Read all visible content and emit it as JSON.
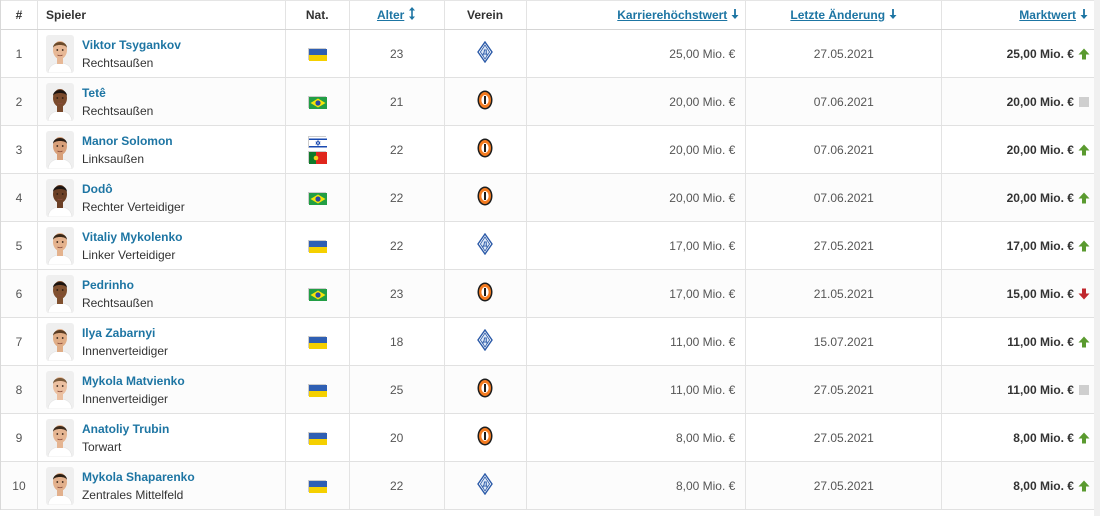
{
  "header": {
    "num": "#",
    "player": "Spieler",
    "nat": "Nat.",
    "age": "Alter",
    "club": "Verein",
    "peak": "Karrierehöchstwert",
    "date": "Letzte Änderung",
    "mv": "Marktwert"
  },
  "colors": {
    "link": "#1d75a3",
    "trend_up": "#5a9a2f",
    "trend_down": "#c0272d",
    "trend_same": "#cfcfcf"
  },
  "rows": [
    {
      "num": "1",
      "name": "Viktor Tsygankov",
      "position": "Rechtsaußen",
      "flags": [
        "ukraine"
      ],
      "age": "23",
      "club": "dynamo-kyiv",
      "peak": "25,00 Mio. €",
      "date": "27.05.2021",
      "mv": "25,00 Mio. €",
      "trend": "up"
    },
    {
      "num": "2",
      "name": "Tetê",
      "position": "Rechtsaußen",
      "flags": [
        "brazil"
      ],
      "age": "21",
      "club": "shakhtar-donetsk",
      "peak": "20,00 Mio. €",
      "date": "07.06.2021",
      "mv": "20,00 Mio. €",
      "trend": "same"
    },
    {
      "num": "3",
      "name": "Manor Solomon",
      "position": "Linksaußen",
      "flags": [
        "israel",
        "portugal"
      ],
      "age": "22",
      "club": "shakhtar-donetsk",
      "peak": "20,00 Mio. €",
      "date": "07.06.2021",
      "mv": "20,00 Mio. €",
      "trend": "up"
    },
    {
      "num": "4",
      "name": "Dodô",
      "position": "Rechter Verteidiger",
      "flags": [
        "brazil"
      ],
      "age": "22",
      "club": "shakhtar-donetsk",
      "peak": "20,00 Mio. €",
      "date": "07.06.2021",
      "mv": "20,00 Mio. €",
      "trend": "up"
    },
    {
      "num": "5",
      "name": "Vitaliy Mykolenko",
      "position": "Linker Verteidiger",
      "flags": [
        "ukraine"
      ],
      "age": "22",
      "club": "dynamo-kyiv",
      "peak": "17,00 Mio. €",
      "date": "27.05.2021",
      "mv": "17,00 Mio. €",
      "trend": "up"
    },
    {
      "num": "6",
      "name": "Pedrinho",
      "position": "Rechtsaußen",
      "flags": [
        "brazil"
      ],
      "age": "23",
      "club": "shakhtar-donetsk",
      "peak": "17,00 Mio. €",
      "date": "21.05.2021",
      "mv": "15,00 Mio. €",
      "trend": "down"
    },
    {
      "num": "7",
      "name": "Ilya Zabarnyi",
      "position": "Innenverteidiger",
      "flags": [
        "ukraine"
      ],
      "age": "18",
      "club": "dynamo-kyiv",
      "peak": "11,00 Mio. €",
      "date": "15.07.2021",
      "mv": "11,00 Mio. €",
      "trend": "up"
    },
    {
      "num": "8",
      "name": "Mykola Matvienko",
      "position": "Innenverteidiger",
      "flags": [
        "ukraine"
      ],
      "age": "25",
      "club": "shakhtar-donetsk",
      "peak": "11,00 Mio. €",
      "date": "27.05.2021",
      "mv": "11,00 Mio. €",
      "trend": "same"
    },
    {
      "num": "9",
      "name": "Anatoliy Trubin",
      "position": "Torwart",
      "flags": [
        "ukraine"
      ],
      "age": "20",
      "club": "shakhtar-donetsk",
      "peak": "8,00 Mio. €",
      "date": "27.05.2021",
      "mv": "8,00 Mio. €",
      "trend": "up"
    },
    {
      "num": "10",
      "name": "Mykola Shaparenko",
      "position": "Zentrales Mittelfeld",
      "flags": [
        "ukraine"
      ],
      "age": "22",
      "club": "dynamo-kyiv",
      "peak": "8,00 Mio. €",
      "date": "27.05.2021",
      "mv": "8,00 Mio. €",
      "trend": "up"
    }
  ]
}
